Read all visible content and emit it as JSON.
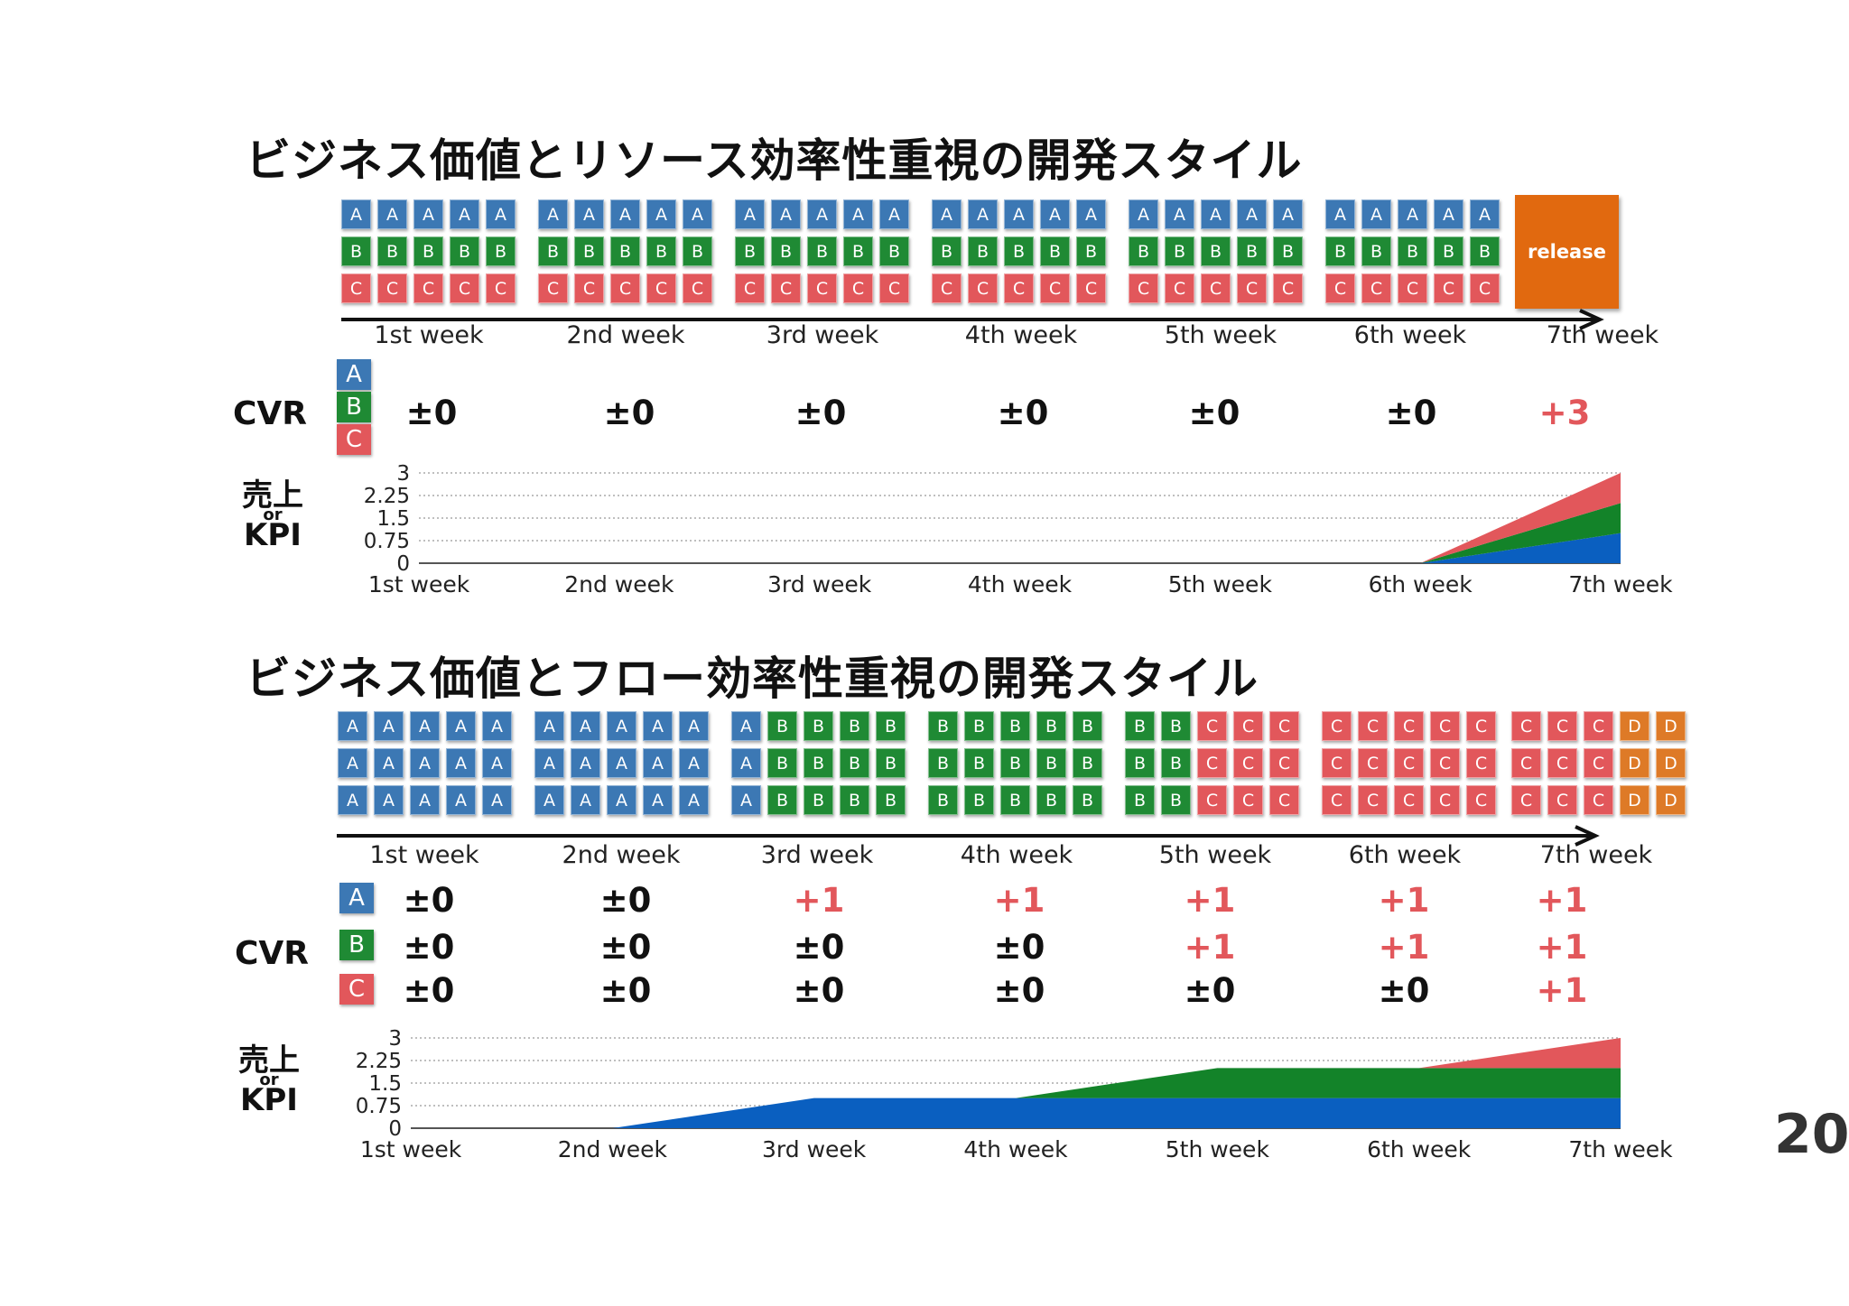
{
  "page_number": "20",
  "section1": {
    "title": "ビジネス価値とリソース効率性重視の開発スタイル",
    "release_label": "release",
    "weeks": [
      "1st week",
      "2nd week",
      "3rd week",
      "4th week",
      "5th week",
      "6th week",
      "7th week"
    ],
    "cvr_label": "CVR",
    "legend": [
      "A",
      "B",
      "C"
    ],
    "cvr_values": [
      "±0",
      "±0",
      "±0",
      "±0",
      "±0",
      "±0",
      "+3"
    ],
    "kpi_label": {
      "line1": "売上",
      "line2": "or",
      "line3": "KPI"
    },
    "chart_ticks": [
      "3",
      "2.25",
      "1.5",
      "0.75",
      "0"
    ]
  },
  "section2": {
    "title": "ビジネス価値とフロー効率性重視の開発スタイル",
    "weeks": [
      "1st week",
      "2nd week",
      "3rd week",
      "4th week",
      "5th week",
      "6th week",
      "7th week"
    ],
    "cvr_label": "CVR",
    "legend": [
      "A",
      "B",
      "C"
    ],
    "cvr_values": {
      "A": [
        "±0",
        "±0",
        "+1",
        "+1",
        "+1",
        "+1",
        "+1"
      ],
      "B": [
        "±0",
        "±0",
        "±0",
        "±0",
        "+1",
        "+1",
        "+1"
      ],
      "C": [
        "±0",
        "±0",
        "±0",
        "±0",
        "±0",
        "±0",
        "+1"
      ]
    },
    "kpi_label": {
      "line1": "売上",
      "line2": "or",
      "line3": "KPI"
    },
    "chart_ticks": [
      "3",
      "2.25",
      "1.5",
      "0.75",
      "0"
    ]
  },
  "colors": {
    "A": "#3c78b4",
    "B": "#1f8a34",
    "C": "#e2575b",
    "D": "#de7a27",
    "release": "#e1690f",
    "positive": "#e2575b",
    "chartA": "#0a5fc0",
    "chartB": "#138329",
    "chartC": "#e2575b"
  },
  "chart_data": [
    {
      "type": "area",
      "title": "",
      "stacked": true,
      "categories": [
        "1st week",
        "2nd week",
        "3rd week",
        "4th week",
        "5th week",
        "6th week",
        "7th week"
      ],
      "ylim": [
        0,
        3
      ],
      "yticks": [
        0,
        0.75,
        1.5,
        2.25,
        3
      ],
      "grid": true,
      "series": [
        {
          "name": "A",
          "values": [
            0,
            0,
            0,
            0,
            0,
            0,
            1
          ]
        },
        {
          "name": "B",
          "values": [
            0,
            0,
            0,
            0,
            0,
            0,
            1
          ]
        },
        {
          "name": "C",
          "values": [
            0,
            0,
            0,
            0,
            0,
            0,
            1
          ]
        }
      ]
    },
    {
      "type": "area",
      "title": "",
      "stacked": true,
      "categories": [
        "1st week",
        "2nd week",
        "3rd week",
        "4th week",
        "5th week",
        "6th week",
        "7th week"
      ],
      "ylim": [
        0,
        3
      ],
      "yticks": [
        0,
        0.75,
        1.5,
        2.25,
        3
      ],
      "grid": true,
      "series": [
        {
          "name": "A",
          "values": [
            0,
            0,
            1,
            1,
            1,
            1,
            1
          ]
        },
        {
          "name": "B",
          "values": [
            0,
            0,
            0,
            0,
            1,
            1,
            1
          ]
        },
        {
          "name": "C",
          "values": [
            0,
            0,
            0,
            0,
            0,
            0,
            1
          ]
        }
      ]
    }
  ]
}
